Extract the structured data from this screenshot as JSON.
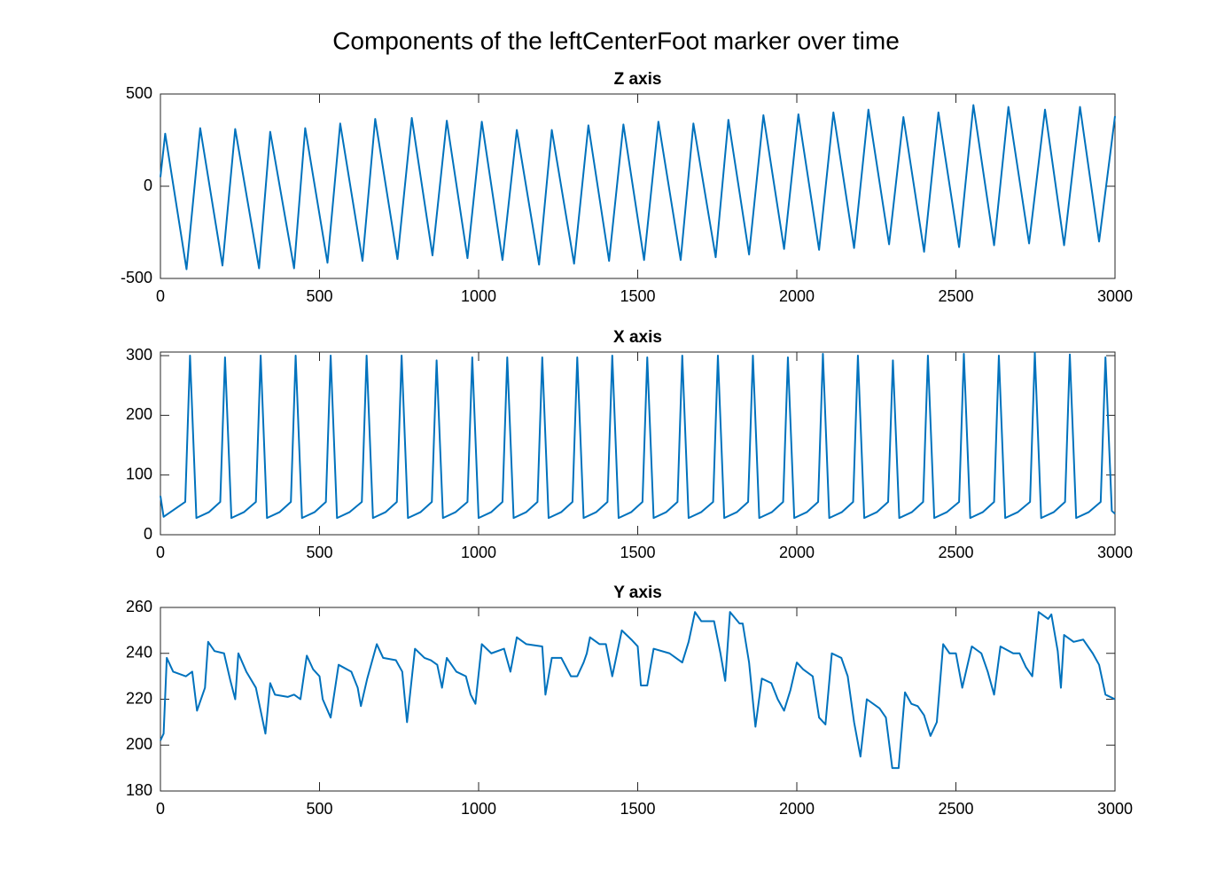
{
  "title": "Components of the leftCenterFoot marker over time",
  "chart_data": [
    {
      "type": "line",
      "title": "Z axis",
      "color": "#0072bd",
      "xlim": [
        0,
        3000
      ],
      "xticks": [
        0,
        500,
        1000,
        1500,
        2000,
        2500,
        3000
      ],
      "ylim": [
        -500,
        500
      ],
      "yticks": [
        -500,
        0,
        500
      ],
      "x": [
        0,
        15,
        82,
        125,
        195,
        235,
        310,
        345,
        420,
        455,
        525,
        565,
        635,
        675,
        745,
        790,
        855,
        900,
        965,
        1010,
        1075,
        1120,
        1190,
        1230,
        1300,
        1345,
        1410,
        1455,
        1520,
        1565,
        1635,
        1675,
        1745,
        1785,
        1850,
        1895,
        1960,
        2005,
        2070,
        2115,
        2180,
        2225,
        2290,
        2335,
        2400,
        2445,
        2510,
        2555,
        2620,
        2665,
        2730,
        2780,
        2840,
        2890,
        2950,
        3000
      ],
      "values": [
        50,
        285,
        -450,
        315,
        -430,
        310,
        -445,
        295,
        -445,
        315,
        -415,
        340,
        -405,
        365,
        -395,
        370,
        -375,
        355,
        -390,
        350,
        -400,
        305,
        -425,
        305,
        -420,
        330,
        -405,
        335,
        -400,
        350,
        -400,
        340,
        -385,
        360,
        -370,
        385,
        -340,
        390,
        -345,
        400,
        -335,
        415,
        -315,
        375,
        -355,
        400,
        -330,
        440,
        -320,
        430,
        -310,
        415,
        -320,
        430,
        -300,
        380
      ]
    },
    {
      "type": "line",
      "title": "X axis",
      "color": "#0072bd",
      "xlim": [
        0,
        3000
      ],
      "xticks": [
        0,
        500,
        1000,
        1500,
        2000,
        2500,
        3000
      ],
      "ylim": [
        0,
        306
      ],
      "yticks": [
        0,
        100,
        200,
        300
      ],
      "x": [
        0,
        10,
        78,
        93,
        113,
        153,
        188,
        203,
        223,
        263,
        300,
        315,
        335,
        375,
        410,
        425,
        445,
        485,
        520,
        535,
        555,
        595,
        633,
        648,
        668,
        708,
        743,
        758,
        778,
        818,
        853,
        868,
        888,
        928,
        965,
        980,
        1000,
        1040,
        1075,
        1090,
        1110,
        1150,
        1185,
        1200,
        1220,
        1260,
        1295,
        1310,
        1330,
        1370,
        1405,
        1420,
        1440,
        1480,
        1515,
        1530,
        1550,
        1590,
        1625,
        1640,
        1660,
        1700,
        1737,
        1752,
        1772,
        1812,
        1847,
        1862,
        1882,
        1922,
        1957,
        1972,
        1992,
        2032,
        2067,
        2082,
        2102,
        2142,
        2177,
        2192,
        2212,
        2252,
        2287,
        2302,
        2322,
        2362,
        2397,
        2412,
        2432,
        2472,
        2510,
        2525,
        2545,
        2585,
        2620,
        2635,
        2655,
        2695,
        2733,
        2748,
        2768,
        2808,
        2843,
        2858,
        2878,
        2918,
        2955,
        2970,
        2990,
        3000
      ],
      "values": [
        65,
        30,
        55,
        300,
        28,
        38,
        55,
        297,
        28,
        38,
        55,
        300,
        28,
        38,
        55,
        300,
        28,
        38,
        55,
        300,
        28,
        38,
        55,
        300,
        28,
        38,
        55,
        300,
        28,
        38,
        55,
        292,
        28,
        38,
        55,
        297,
        28,
        38,
        55,
        297,
        28,
        38,
        55,
        297,
        28,
        38,
        55,
        297,
        28,
        38,
        55,
        300,
        28,
        38,
        55,
        297,
        28,
        38,
        55,
        300,
        28,
        38,
        55,
        300,
        28,
        38,
        55,
        300,
        28,
        38,
        55,
        297,
        28,
        38,
        55,
        303,
        28,
        38,
        55,
        300,
        28,
        38,
        55,
        292,
        28,
        38,
        55,
        300,
        28,
        38,
        55,
        303,
        28,
        38,
        55,
        300,
        28,
        38,
        55,
        305,
        28,
        38,
        55,
        302,
        28,
        38,
        55,
        297,
        40,
        35
      ]
    },
    {
      "type": "line",
      "title": "Y axis",
      "color": "#0072bd",
      "xlim": [
        0,
        3000
      ],
      "xticks": [
        0,
        500,
        1000,
        1500,
        2000,
        2500,
        3000
      ],
      "ylim": [
        180,
        260
      ],
      "yticks": [
        180,
        200,
        220,
        240,
        260
      ],
      "x": [
        0,
        10,
        20,
        40,
        80,
        100,
        115,
        140,
        150,
        170,
        200,
        220,
        235,
        245,
        270,
        300,
        330,
        345,
        360,
        400,
        420,
        440,
        460,
        480,
        500,
        510,
        535,
        560,
        600,
        620,
        630,
        650,
        680,
        700,
        740,
        760,
        775,
        800,
        830,
        850,
        870,
        885,
        900,
        930,
        960,
        975,
        990,
        1010,
        1040,
        1080,
        1100,
        1120,
        1150,
        1200,
        1210,
        1230,
        1260,
        1290,
        1310,
        1330,
        1340,
        1350,
        1380,
        1400,
        1420,
        1450,
        1480,
        1500,
        1510,
        1530,
        1550,
        1600,
        1620,
        1640,
        1660,
        1680,
        1700,
        1740,
        1760,
        1775,
        1790,
        1820,
        1830,
        1850,
        1870,
        1890,
        1920,
        1940,
        1960,
        1980,
        2000,
        2020,
        2050,
        2070,
        2090,
        2110,
        2140,
        2160,
        2180,
        2200,
        2220,
        2260,
        2280,
        2300,
        2320,
        2340,
        2360,
        2380,
        2400,
        2420,
        2440,
        2460,
        2480,
        2500,
        2520,
        2550,
        2580,
        2600,
        2620,
        2640,
        2680,
        2700,
        2720,
        2740,
        2760,
        2790,
        2800,
        2820,
        2830,
        2840,
        2870,
        2900,
        2930,
        2950,
        2970,
        3000
      ],
      "values": [
        202,
        205,
        238,
        232,
        230,
        232,
        215,
        225,
        245,
        241,
        240,
        228,
        220,
        240,
        232,
        225,
        205,
        227,
        222,
        221,
        222,
        220,
        239,
        233,
        230,
        220,
        212,
        235,
        232,
        225,
        217,
        229,
        244,
        238,
        237,
        232,
        210,
        242,
        238,
        237,
        235,
        225,
        238,
        232,
        230,
        222,
        218,
        244,
        240,
        242,
        232,
        247,
        244,
        243,
        222,
        238,
        238,
        230,
        230,
        236,
        240,
        247,
        244,
        244,
        230,
        250,
        246,
        243,
        226,
        226,
        242,
        240,
        238,
        236,
        245,
        258,
        254,
        254,
        240,
        228,
        258,
        253,
        253,
        236,
        208,
        229,
        227,
        220,
        215,
        224,
        236,
        233,
        230,
        212,
        209,
        240,
        238,
        230,
        210,
        195,
        220,
        216,
        212,
        190,
        190,
        223,
        218,
        217,
        213,
        204,
        210,
        244,
        240,
        240,
        225,
        243,
        240,
        232,
        222,
        243,
        240,
        240,
        234,
        230,
        258,
        255,
        257,
        241,
        225,
        248,
        245,
        246,
        240,
        235,
        222,
        220
      ]
    }
  ]
}
